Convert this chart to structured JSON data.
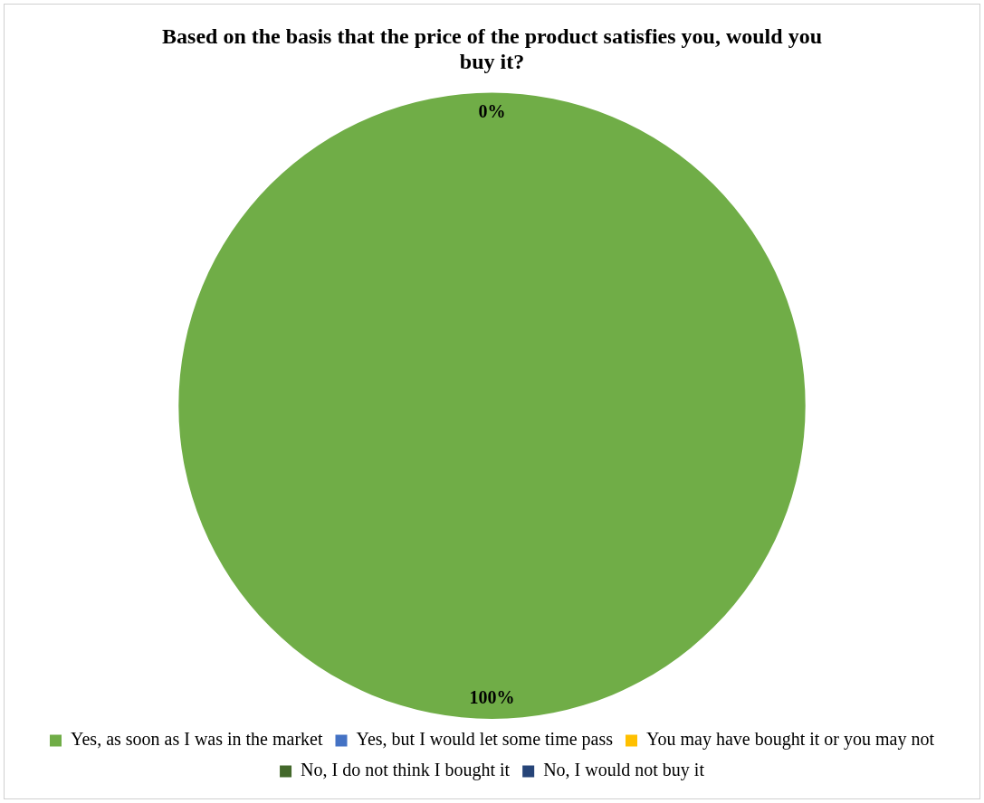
{
  "chart_data": {
    "type": "pie",
    "title": "Based on the basis that the price of the product satisfies you, would you buy it?",
    "categories": [
      "Yes, as soon as I was in the market",
      "Yes, but I would let some time pass",
      "You may have bought it or you may not",
      "No, I do not think I bought it",
      "No, I would not buy it"
    ],
    "values": [
      100,
      0,
      0,
      0,
      0
    ],
    "colors": [
      "#70ad47",
      "#4472c4",
      "#ffc000",
      "#43682b",
      "#264478"
    ],
    "value_labels": [
      "100%",
      "0%",
      null,
      null,
      null
    ],
    "legend": "bottom"
  }
}
